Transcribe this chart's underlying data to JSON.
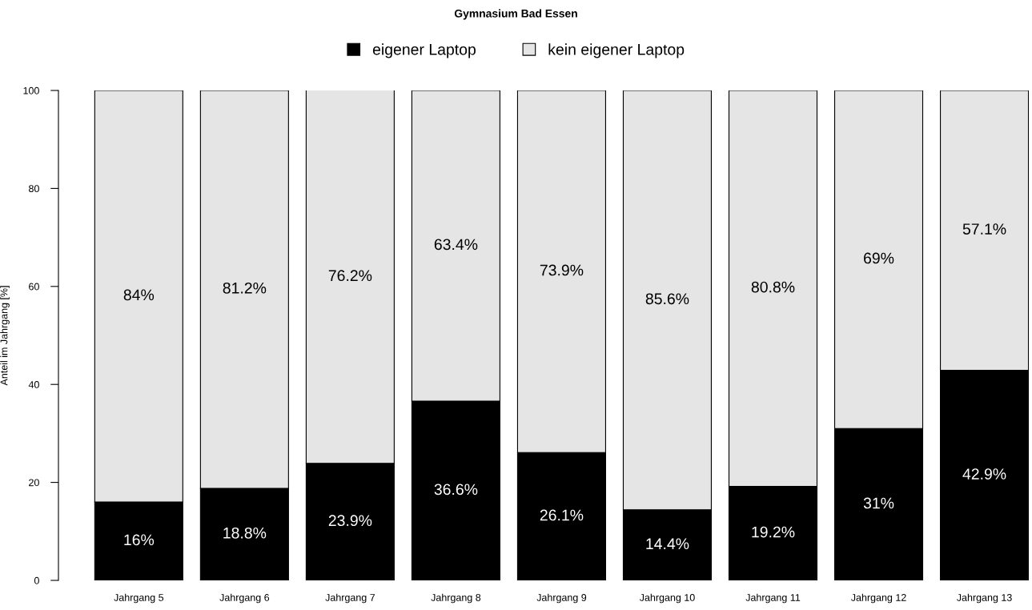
{
  "chart_data": {
    "type": "bar",
    "title": "Gymnasium Bad Essen",
    "ylabel": "Anteil im Jahrgang [%]",
    "categories": [
      "Jahrgang 5",
      "Jahrgang 6",
      "Jahrgang 7",
      "Jahrgang 8",
      "Jahrgang 9",
      "Jahrgang 10",
      "Jahrgang 11",
      "Jahrgang 12",
      "Jahrgang 13"
    ],
    "stacked": true,
    "legend": "top",
    "grid": false,
    "ylim": [
      0,
      100
    ],
    "yticks": [
      0,
      20,
      40,
      60,
      80,
      100
    ],
    "series": [
      {
        "name": "eigener Laptop",
        "color": "#000000",
        "values": [
          16,
          18.8,
          23.9,
          36.6,
          26.1,
          14.4,
          19.2,
          31,
          42.9
        ],
        "value_labels": [
          "16%",
          "18.8%",
          "23.9%",
          "36.6%",
          "26.1%",
          "14.4%",
          "19.2%",
          "31%",
          "42.9%"
        ]
      },
      {
        "name": "kein eigener Laptop",
        "color": "#e5e5e5",
        "values": [
          84,
          81.2,
          76.2,
          63.4,
          73.9,
          85.6,
          80.8,
          69,
          57.1
        ],
        "value_labels": [
          "84%",
          "81.2%",
          "76.2%",
          "63.4%",
          "73.9%",
          "85.6%",
          "80.8%",
          "69%",
          "57.1%"
        ]
      }
    ]
  }
}
